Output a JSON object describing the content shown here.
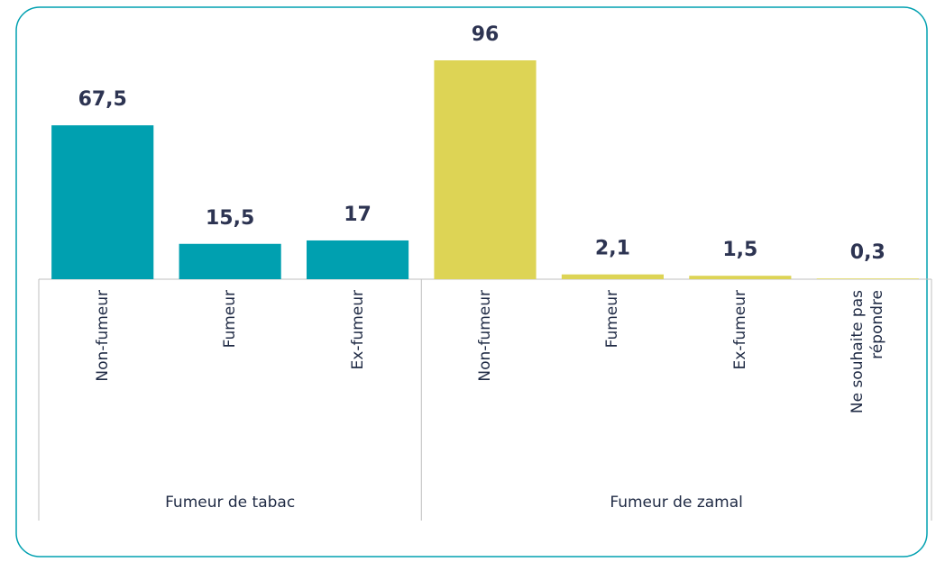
{
  "chart_data": {
    "type": "bar",
    "groups": [
      {
        "label": "Fumeur de tabac",
        "color": "#00a0b0",
        "categories": [
          "Non-fumeur",
          "Fumeur",
          "Ex-fumeur"
        ],
        "values": [
          67.5,
          15.5,
          17
        ],
        "value_labels": [
          "67,5",
          "15,5",
          "17"
        ]
      },
      {
        "label": "Fumeur de zamal",
        "color": "#ddd455",
        "categories": [
          "Non-fumeur",
          "Fumeur",
          "Ex-fumeur",
          "Ne souhaite pas répondre"
        ],
        "values": [
          96,
          2.1,
          1.5,
          0.3
        ],
        "value_labels": [
          "96",
          "2,1",
          "1,5",
          "0,3"
        ]
      }
    ]
  }
}
